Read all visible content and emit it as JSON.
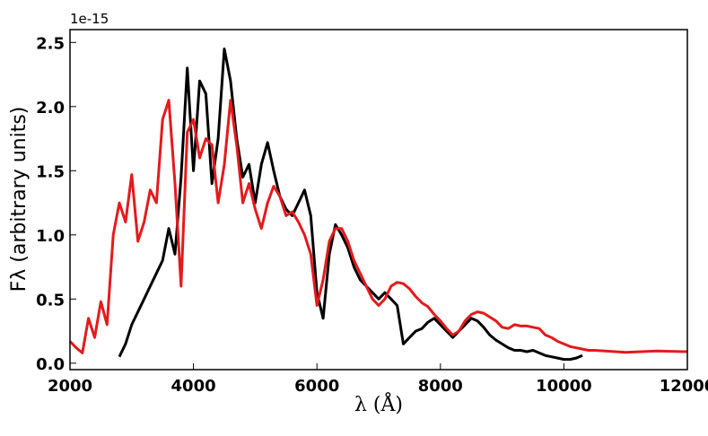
{
  "chart_data": {
    "type": "line",
    "xlabel": "λ (Å)",
    "ylabel": "Fλ (arbitrary units)",
    "y_offset_label": "1e-15",
    "x": [
      2000,
      2100,
      2200,
      2300,
      2400,
      2500,
      2600,
      2700,
      2800,
      2900,
      3000,
      3100,
      3200,
      3300,
      3400,
      3500,
      3600,
      3700,
      3800,
      3900,
      4000,
      4100,
      4200,
      4300,
      4400,
      4500,
      4600,
      4700,
      4800,
      4900,
      5000,
      5100,
      5200,
      5300,
      5400,
      5500,
      5600,
      5700,
      5800,
      5900,
      6000,
      6100,
      6200,
      6300,
      6400,
      6500,
      6600,
      6700,
      6800,
      6900,
      7000,
      7100,
      7200,
      7300,
      7400,
      7500,
      7600,
      7700,
      7800,
      7900,
      8000,
      8100,
      8200,
      8300,
      8400,
      8500,
      8600,
      8700,
      8800,
      8900,
      9000,
      9100,
      9200,
      9300,
      9400,
      9500,
      9600,
      9700,
      9800,
      9900,
      10000,
      10100,
      10200,
      10300,
      10400,
      10500,
      11000,
      11500,
      12000
    ],
    "series": [
      {
        "color": "#000000",
        "values": [
          null,
          null,
          null,
          null,
          null,
          null,
          null,
          null,
          0.05,
          0.15,
          0.3,
          0.4,
          0.5,
          0.6,
          0.7,
          0.8,
          1.05,
          0.85,
          1.45,
          2.3,
          1.5,
          2.2,
          2.1,
          1.4,
          1.75,
          2.45,
          2.2,
          1.75,
          1.45,
          1.55,
          1.25,
          1.55,
          1.72,
          1.5,
          1.3,
          1.2,
          1.15,
          1.25,
          1.35,
          1.15,
          0.55,
          0.35,
          0.85,
          1.08,
          1.0,
          0.9,
          0.75,
          0.65,
          0.6,
          0.55,
          0.5,
          0.55,
          0.5,
          0.45,
          0.15,
          0.2,
          0.25,
          0.27,
          0.32,
          0.35,
          0.3,
          0.25,
          0.2,
          0.25,
          0.3,
          0.35,
          0.33,
          0.28,
          0.22,
          0.18,
          0.15,
          0.12,
          0.1,
          0.1,
          0.09,
          0.1,
          0.08,
          0.06,
          0.05,
          0.04,
          0.03,
          0.03,
          0.04,
          0.06,
          null,
          null,
          null,
          null,
          null
        ]
      },
      {
        "color": "#e41a1c",
        "values": [
          0.17,
          0.12,
          0.08,
          0.35,
          0.2,
          0.48,
          0.3,
          1.0,
          1.25,
          1.1,
          1.47,
          0.95,
          1.1,
          1.35,
          1.25,
          1.9,
          2.05,
          1.4,
          0.6,
          1.8,
          1.9,
          1.6,
          1.75,
          1.7,
          1.25,
          1.55,
          2.05,
          1.7,
          1.25,
          1.4,
          1.2,
          1.05,
          1.25,
          1.38,
          1.3,
          1.15,
          1.18,
          1.1,
          1.0,
          0.85,
          0.45,
          0.65,
          0.95,
          1.05,
          1.05,
          0.95,
          0.8,
          0.7,
          0.6,
          0.5,
          0.45,
          0.5,
          0.6,
          0.63,
          0.62,
          0.58,
          0.52,
          0.47,
          0.44,
          0.38,
          0.33,
          0.27,
          0.22,
          0.25,
          0.33,
          0.38,
          0.4,
          0.39,
          0.36,
          0.33,
          0.28,
          0.27,
          0.3,
          0.29,
          0.29,
          0.28,
          0.27,
          0.22,
          0.2,
          0.17,
          0.15,
          0.13,
          0.12,
          0.11,
          0.1,
          0.1,
          0.085,
          0.095,
          0.09
        ]
      }
    ],
    "xlim": [
      2000,
      12000
    ],
    "xticks": [
      2000,
      4000,
      6000,
      8000,
      10000,
      12000
    ],
    "ylim": [
      -0.05,
      2.6
    ],
    "yticks": [
      {
        "value": 0,
        "label": "0.0"
      },
      0.5,
      {
        "value": 1,
        "label": "1.0"
      },
      1.5,
      {
        "value": 2,
        "label": "2.0"
      },
      2.5
    ]
  }
}
